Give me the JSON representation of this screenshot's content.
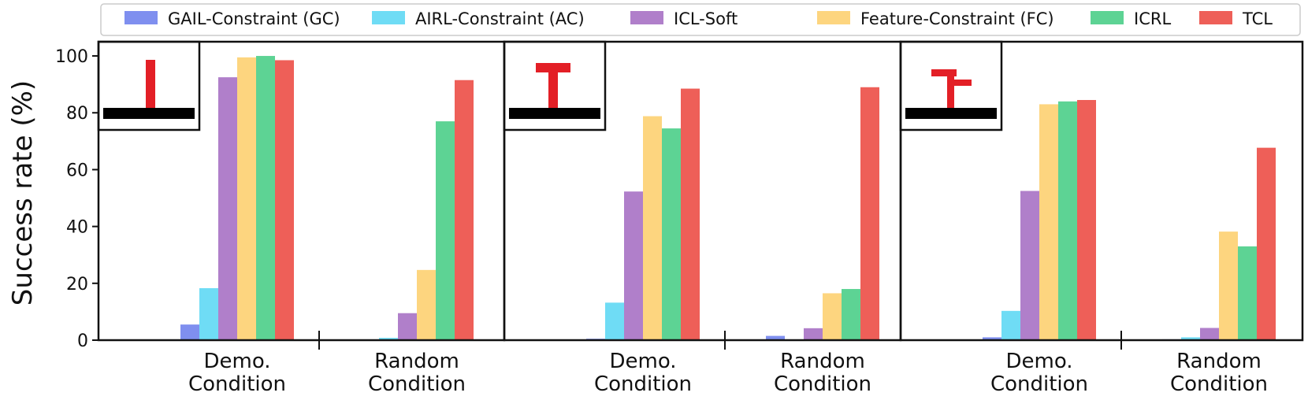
{
  "chart_data": {
    "type": "bar",
    "ylabel": "Success rate (%)",
    "ylim": [
      0,
      105
    ],
    "yticks": [
      0,
      20,
      40,
      60,
      80,
      100
    ],
    "legend_position": "top",
    "groups": [
      "Demo.\nCondition",
      "Random\nCondition"
    ],
    "series": [
      {
        "name": "GAIL-Constraint (GC)",
        "color": "#7f8fef"
      },
      {
        "name": "AIRL-Constraint (AC)",
        "color": "#6fdcf5"
      },
      {
        "name": "ICL-Soft",
        "color": "#b07fca"
      },
      {
        "name": "Feature-Constraint (FC)",
        "color": "#fdd57f"
      },
      {
        "name": "ICRL",
        "color": "#5dd394"
      },
      {
        "name": "TCL",
        "color": "#ee5f58"
      }
    ],
    "panels": [
      {
        "inset_icon": "i-shape-icon",
        "values": [
          [
            5.5,
            18.3,
            92.5,
            99.5,
            100.0,
            98.5
          ],
          [
            0.2,
            0.8,
            9.5,
            24.7,
            77.0,
            91.5
          ]
        ]
      },
      {
        "inset_icon": "t-shape-icon",
        "values": [
          [
            0.5,
            13.2,
            52.3,
            78.8,
            74.5,
            88.5
          ],
          [
            1.5,
            0.0,
            4.2,
            16.5,
            18.0,
            89.0
          ]
        ]
      },
      {
        "inset_icon": "offset-t-shape-icon",
        "values": [
          [
            1.0,
            10.3,
            52.5,
            83.0,
            84.0,
            84.5
          ],
          [
            0.3,
            1.0,
            4.3,
            38.2,
            33.0,
            67.7
          ]
        ]
      }
    ]
  }
}
